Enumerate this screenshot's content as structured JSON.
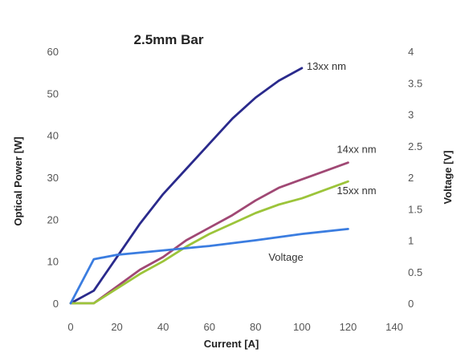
{
  "chart_data": {
    "type": "line",
    "title": "2.5mm Bar",
    "xlabel": "Current [A]",
    "ylabel": "Optical Power [W]",
    "y2label": "Voltage [V]",
    "xlim": [
      0,
      140
    ],
    "ylim": [
      0,
      60
    ],
    "y2lim": [
      0,
      4
    ],
    "x_ticks": [
      "0",
      "20",
      "40",
      "60",
      "80",
      "100",
      "120",
      "140"
    ],
    "y_ticks": [
      "0",
      "10",
      "20",
      "30",
      "40",
      "50",
      "60"
    ],
    "y2_ticks": [
      "0",
      "0.5",
      "1",
      "1.5",
      "2",
      "2.5",
      "3",
      "3.5",
      "4"
    ],
    "grid": false,
    "series": [
      {
        "name": "13xx nm",
        "axis": "left",
        "color": "#2a2a8c",
        "x": [
          0,
          10,
          20,
          30,
          40,
          50,
          60,
          70,
          80,
          90,
          100
        ],
        "y": [
          0,
          3,
          11,
          19,
          26,
          32,
          38,
          44,
          49,
          53,
          56
        ]
      },
      {
        "name": "14xx nm",
        "axis": "left",
        "color": "#a04874",
        "x": [
          0,
          10,
          20,
          30,
          40,
          50,
          60,
          70,
          80,
          90,
          100,
          110,
          120
        ],
        "y": [
          0,
          0,
          4,
          8,
          11,
          15,
          18,
          21,
          24.5,
          27.5,
          29.5,
          31.5,
          33.5
        ]
      },
      {
        "name": "15xx nm",
        "axis": "left",
        "color": "#9cc43a",
        "x": [
          0,
          10,
          20,
          30,
          40,
          50,
          60,
          70,
          80,
          90,
          100,
          110,
          120
        ],
        "y": [
          0,
          0,
          3.5,
          7,
          10,
          13.5,
          16.5,
          19,
          21.5,
          23.5,
          25,
          27,
          29
        ]
      },
      {
        "name": "Voltage",
        "axis": "right",
        "color": "#3b7de0",
        "x": [
          0,
          10,
          20,
          40,
          60,
          80,
          100,
          120
        ],
        "y": [
          0,
          0.7,
          0.77,
          0.84,
          0.91,
          1.0,
          1.1,
          1.18
        ]
      }
    ]
  }
}
